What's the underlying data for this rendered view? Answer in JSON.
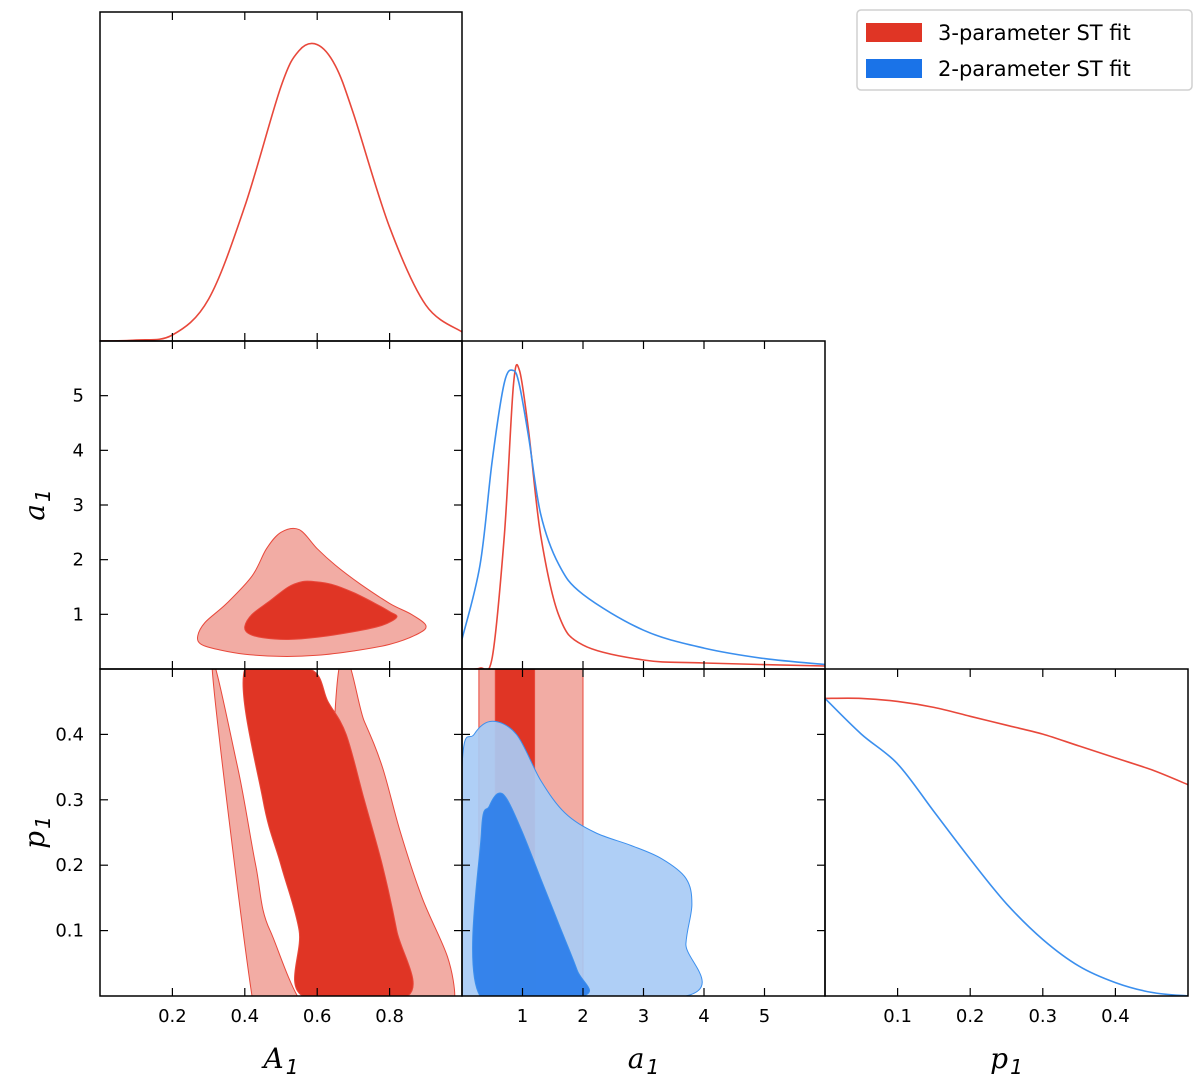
{
  "chart_data": {
    "type": "triangle-corner-plot",
    "colors": {
      "red_line": "#e8483b",
      "red_inner": "#e03525",
      "red_outer": "#f2aca4",
      "blue_line": "#3b8fee",
      "blue_inner": "#2e80ea",
      "blue_inner_overlap": "#2a65d1",
      "blue_outer": "#a8cbf5"
    },
    "legend": {
      "entries": [
        {
          "label": "3-parameter ST fit",
          "color": "#e03525"
        },
        {
          "label": "2-parameter ST fit",
          "color": "#1a73e8"
        }
      ]
    },
    "parameters": [
      {
        "symbol": "A",
        "subscript": "1",
        "range": [
          0,
          1
        ],
        "ticks": [
          0.2,
          0.4,
          0.6,
          0.8
        ],
        "tick_labels": [
          "0.2",
          "0.4",
          "0.6",
          "0.8"
        ]
      },
      {
        "symbol": "a",
        "subscript": "1",
        "range": [
          0,
          6
        ],
        "ticks": [
          1,
          2,
          3,
          4,
          5
        ],
        "tick_labels": [
          "1",
          "2",
          "3",
          "4",
          "5"
        ]
      },
      {
        "symbol": "p",
        "subscript": "1",
        "range": [
          0,
          0.5
        ],
        "ticks": [
          0.1,
          0.2,
          0.3,
          0.4
        ],
        "tick_labels": [
          "0.1",
          "0.2",
          "0.3",
          "0.4"
        ]
      }
    ],
    "marginals": [
      {
        "parameter": "A_1",
        "series": [
          {
            "name": "3-parameter ST fit",
            "x": [
              0,
              0.1,
              0.2,
              0.3,
              0.4,
              0.5,
              0.55,
              0.6,
              0.65,
              0.7,
              0.8,
              0.9,
              1.0
            ],
            "y": [
              0.0,
              0.003,
              0.02,
              0.14,
              0.45,
              0.85,
              0.97,
              0.99,
              0.92,
              0.76,
              0.38,
              0.12,
              0.03
            ]
          }
        ]
      },
      {
        "parameter": "a_1",
        "series": [
          {
            "name": "3-parameter ST fit",
            "x": [
              0,
              0.3,
              0.5,
              0.7,
              0.85,
              0.95,
              1.1,
              1.3,
              1.6,
              2.0,
              3.0,
              4.0,
              6.0
            ],
            "y": [
              0.0,
              0.003,
              0.04,
              0.45,
              0.95,
              1.0,
              0.8,
              0.45,
              0.18,
              0.08,
              0.03,
              0.02,
              0.01
            ]
          },
          {
            "name": "2-parameter ST fit",
            "x": [
              0,
              0.3,
              0.5,
              0.7,
              0.85,
              0.95,
              1.1,
              1.3,
              1.6,
              2.0,
              3.0,
              4.0,
              5.0,
              6.0
            ],
            "y": [
              0.1,
              0.35,
              0.7,
              0.96,
              1.0,
              0.95,
              0.78,
              0.52,
              0.35,
              0.25,
              0.13,
              0.07,
              0.035,
              0.015
            ]
          }
        ]
      },
      {
        "parameter": "p_1",
        "series": [
          {
            "name": "3-parameter ST fit",
            "x": [
              0,
              0.05,
              0.1,
              0.15,
              0.2,
              0.25,
              0.3,
              0.35,
              0.4,
              0.45,
              0.5
            ],
            "y": [
              1.0,
              1.0,
              0.99,
              0.97,
              0.94,
              0.91,
              0.88,
              0.84,
              0.8,
              0.76,
              0.71
            ]
          },
          {
            "name": "2-parameter ST fit",
            "x": [
              0,
              0.05,
              0.1,
              0.15,
              0.2,
              0.25,
              0.3,
              0.35,
              0.4,
              0.45,
              0.5
            ],
            "y": [
              1.0,
              0.88,
              0.78,
              0.62,
              0.46,
              0.31,
              0.19,
              0.1,
              0.045,
              0.012,
              0.0
            ]
          }
        ]
      }
    ],
    "contours": [
      {
        "x_param": "A_1",
        "y_param": "a_1",
        "regions": [
          {
            "series": "3-parameter ST fit",
            "level": "95%",
            "x": [
              0.27,
              0.29,
              0.35,
              0.42,
              0.46,
              0.5,
              0.55,
              0.6,
              0.65,
              0.72,
              0.8,
              0.86,
              0.9,
              0.88,
              0.8,
              0.7,
              0.6,
              0.5,
              0.4,
              0.33,
              0.28
            ],
            "y": [
              0.6,
              0.85,
              1.2,
              1.7,
              2.2,
              2.5,
              2.55,
              2.2,
              1.9,
              1.55,
              1.2,
              1.0,
              0.8,
              0.65,
              0.45,
              0.33,
              0.25,
              0.23,
              0.27,
              0.35,
              0.45
            ]
          },
          {
            "series": "3-parameter ST fit",
            "level": "68%",
            "x": [
              0.4,
              0.42,
              0.47,
              0.52,
              0.56,
              0.59,
              0.64,
              0.7,
              0.76,
              0.8,
              0.82,
              0.78,
              0.7,
              0.6,
              0.52,
              0.45,
              0.41
            ],
            "y": [
              0.78,
              1.0,
              1.25,
              1.5,
              1.6,
              1.6,
              1.55,
              1.4,
              1.2,
              1.05,
              0.95,
              0.8,
              0.68,
              0.58,
              0.54,
              0.57,
              0.65
            ]
          }
        ]
      },
      {
        "x_param": "A_1",
        "y_param": "p_1",
        "regions": [
          {
            "series": "3-parameter ST fit",
            "level": "95%",
            "x": [
              0.31,
              0.38,
              0.43,
              0.47,
              0.6,
              0.66,
              0.73,
              0.78,
              0.83,
              0.89,
              0.96,
              0.98,
              0.96,
              0.45,
              0.42
            ],
            "y": [
              0.5,
              0.35,
              0.2,
              0.1,
              0.0,
              0.5,
              0.42,
              0.35,
              0.25,
              0.15,
              0.06,
              0.0,
              0.0,
              0.0,
              0.0
            ]
          },
          {
            "series": "3-parameter ST fit",
            "level": "68%",
            "x": [
              0.4,
              0.45,
              0.5,
              0.55,
              0.56,
              0.85,
              0.82,
              0.78,
              0.73,
              0.68,
              0.63,
              0.58
            ],
            "y": [
              0.5,
              0.3,
              0.2,
              0.1,
              0.0,
              0.0,
              0.1,
              0.2,
              0.3,
              0.4,
              0.45,
              0.5
            ]
          }
        ]
      },
      {
        "x_param": "a_1",
        "y_param": "p_1",
        "regions": [
          {
            "series": "3-parameter ST fit",
            "level": "95%",
            "x": [
              0.28,
              2.0,
              2.0,
              0.28
            ],
            "y": [
              0.5,
              0.5,
              0.0,
              0.0
            ]
          },
          {
            "series": "3-parameter ST fit",
            "level": "68%",
            "x": [
              0.55,
              1.2,
              1.2,
              0.55
            ],
            "y": [
              0.5,
              0.5,
              0.0,
              0.0
            ]
          },
          {
            "series": "2-parameter ST fit",
            "level": "95%",
            "x": [
              0.0,
              0.0,
              0.2,
              0.5,
              0.9,
              1.3,
              1.7,
              2.2,
              2.8,
              3.3,
              3.7,
              3.8,
              3.7,
              3.7
            ],
            "y": [
              0.0,
              0.35,
              0.4,
              0.42,
              0.4,
              0.33,
              0.28,
              0.25,
              0.23,
              0.21,
              0.18,
              0.14,
              0.08,
              0.0
            ]
          },
          {
            "series": "2-parameter ST fit",
            "level": "68%",
            "x": [
              0.3,
              0.32,
              0.45,
              0.6,
              0.75,
              1.0,
              1.3,
              1.6,
              1.9,
              2.0
            ],
            "y": [
              0.0,
              0.25,
              0.29,
              0.31,
              0.3,
              0.25,
              0.18,
              0.11,
              0.04,
              0.0
            ]
          }
        ]
      }
    ]
  }
}
